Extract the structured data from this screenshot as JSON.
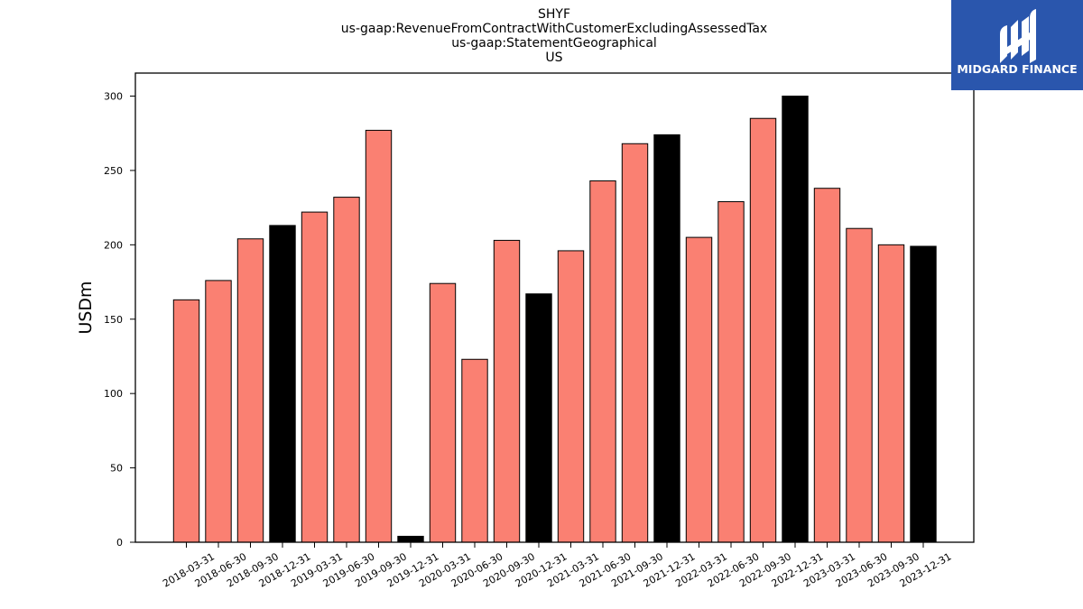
{
  "colors": {
    "bar": "#fa8072",
    "bar_highlight": "#000000",
    "logo_bg": "#2a56ad",
    "logo_text": "#ffffff"
  },
  "logo": {
    "text": "MIDGARD FINANCE",
    "icon": "midgard-logo-icon"
  },
  "chart_data": {
    "type": "bar",
    "title_lines": [
      "SHYF",
      "us-gaap:RevenueFromContractWithCustomerExcludingAssessedTax",
      "us-gaap:StatementGeographical",
      "US"
    ],
    "xlabel": "",
    "ylabel": "USDm",
    "ylim": [
      0,
      315
    ],
    "yticks": [
      0,
      50,
      100,
      150,
      200,
      250,
      300
    ],
    "grid": false,
    "categories": [
      "2018-03-31",
      "2018-06-30",
      "2018-09-30",
      "2018-12-31",
      "2019-03-31",
      "2019-06-30",
      "2019-09-30",
      "2019-12-31",
      "2020-03-31",
      "2020-06-30",
      "2020-09-30",
      "2020-12-31",
      "2021-03-31",
      "2021-06-30",
      "2021-09-30",
      "2021-12-31",
      "2022-03-31",
      "2022-06-30",
      "2022-09-30",
      "2022-12-31",
      "2023-03-31",
      "2023-06-30",
      "2023-09-30",
      "2023-12-31"
    ],
    "values": [
      163,
      176,
      204,
      213,
      222,
      232,
      277,
      4,
      174,
      123,
      203,
      167,
      196,
      243,
      268,
      274,
      205,
      229,
      285,
      300,
      238,
      211,
      200,
      199
    ],
    "highlight": [
      false,
      false,
      false,
      true,
      false,
      false,
      false,
      true,
      false,
      false,
      false,
      true,
      false,
      false,
      false,
      true,
      false,
      false,
      false,
      true,
      false,
      false,
      false,
      true
    ]
  }
}
